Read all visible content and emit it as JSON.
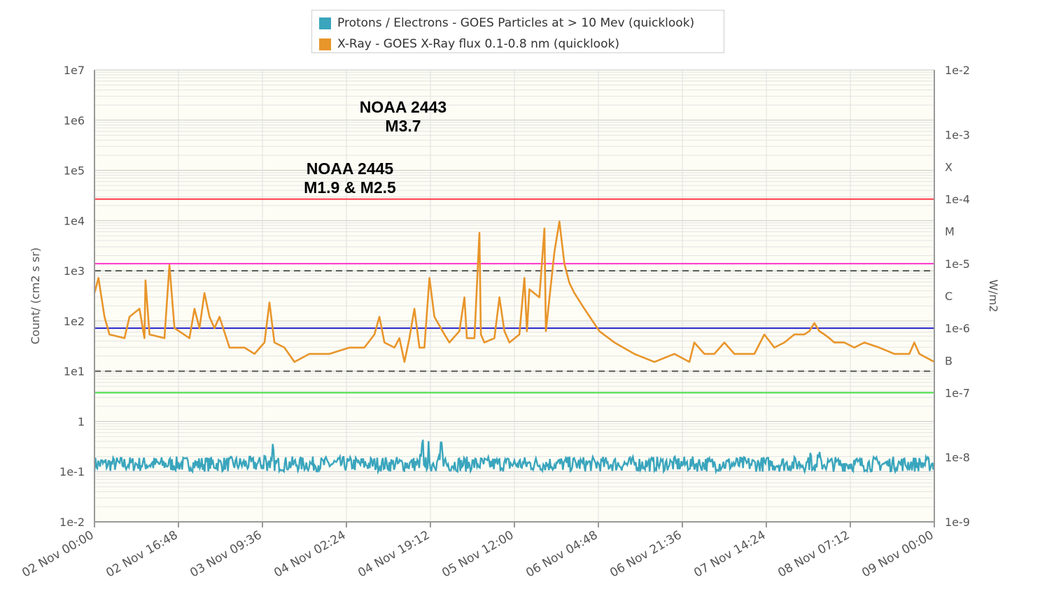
{
  "chart_data": {
    "type": "line",
    "xlabels": [
      "02 Nov 00:00",
      "02 Nov 16:48",
      "03 Nov 09:36",
      "04 Nov 02:24",
      "04 Nov 19:12",
      "05 Nov 12:00",
      "06 Nov 04:48",
      "06 Nov 21:36",
      "07 Nov 14:24",
      "08 Nov 07:12",
      "09 Nov 00:00"
    ],
    "x_range_hours": [
      0,
      168
    ],
    "left_axis": {
      "label": "Count/ (cm2 s sr)",
      "scale": "log",
      "ticks": [
        "1e7",
        "1e6",
        "1e5",
        "1e4",
        "1e3",
        "1e2",
        "1e1",
        "1",
        "1e-1",
        "1e-2"
      ],
      "ylim_exp": [
        -2,
        7
      ]
    },
    "right_axis": {
      "label": "W/m2",
      "scale": "log",
      "ticks": [
        "1e-2",
        "1e-3",
        "1e-4",
        "1e-5",
        "1e-6",
        "1e-7",
        "1e-8",
        "1e-9"
      ],
      "ylim_exp": [
        -9,
        -2
      ],
      "classes": [
        "X",
        "M",
        "C",
        "B"
      ]
    },
    "threshold_lines": [
      {
        "axis": "right",
        "value": 0.0001,
        "color": "#ff3344",
        "style": "solid"
      },
      {
        "axis": "right",
        "value": 1e-05,
        "color": "#ff33cc",
        "style": "solid"
      },
      {
        "axis": "left",
        "value": 1000,
        "color": "#555555",
        "style": "dashed"
      },
      {
        "axis": "right",
        "value": 1e-06,
        "color": "#2222cc",
        "style": "solid"
      },
      {
        "axis": "left",
        "value": 10,
        "color": "#555555",
        "style": "dashed"
      },
      {
        "axis": "right",
        "value": 1e-07,
        "color": "#44dd44",
        "style": "solid"
      }
    ],
    "series": [
      {
        "name": "Protons / Electrons - GOES Particles at > 10 Mev (quicklook)",
        "color": "#3aa5bd",
        "axis": "left",
        "baseline_low": 0.1,
        "baseline_high": 0.2,
        "peaks": [
          [
            35,
            0.4
          ],
          [
            66,
            0.5
          ],
          [
            69,
            0.4
          ],
          [
            144,
            0.35
          ]
        ]
      },
      {
        "name": "X-Ray - GOES X-Ray flux 0.1-0.8 nm (quicklook)",
        "color": "#e8952a",
        "axis": "right",
        "points": [
          [
            0,
            3.5e-06
          ],
          [
            0.8,
            6e-06
          ],
          [
            2,
            1.5e-06
          ],
          [
            3,
            8e-07
          ],
          [
            6,
            7e-07
          ],
          [
            7,
            1.5e-06
          ],
          [
            9,
            2e-06
          ],
          [
            10,
            7e-07
          ],
          [
            10.2,
            5.5e-06
          ],
          [
            11,
            8e-07
          ],
          [
            14,
            7e-07
          ],
          [
            15,
            9.5e-06
          ],
          [
            16,
            1e-06
          ],
          [
            19,
            7e-07
          ],
          [
            20,
            2e-06
          ],
          [
            21,
            1e-06
          ],
          [
            22,
            3.5e-06
          ],
          [
            23,
            1.5e-06
          ],
          [
            24,
            1e-06
          ],
          [
            25,
            1.5e-06
          ],
          [
            27,
            5e-07
          ],
          [
            30,
            5e-07
          ],
          [
            32,
            4e-07
          ],
          [
            34,
            6e-07
          ],
          [
            35,
            2.5e-06
          ],
          [
            36,
            6e-07
          ],
          [
            38,
            5e-07
          ],
          [
            40,
            3e-07
          ],
          [
            43,
            4e-07
          ],
          [
            47,
            4e-07
          ],
          [
            51,
            5e-07
          ],
          [
            54,
            5e-07
          ],
          [
            56,
            8e-07
          ],
          [
            57,
            1.5e-06
          ],
          [
            58,
            6e-07
          ],
          [
            60,
            5e-07
          ],
          [
            61,
            7e-07
          ],
          [
            62,
            3e-07
          ],
          [
            63,
            7e-07
          ],
          [
            64,
            2e-06
          ],
          [
            65,
            5e-07
          ],
          [
            66,
            5e-07
          ],
          [
            67,
            6e-06
          ],
          [
            68,
            1.5e-06
          ],
          [
            70,
            8e-07
          ],
          [
            71,
            6e-07
          ],
          [
            73,
            9e-07
          ],
          [
            74,
            3e-06
          ],
          [
            74.5,
            7e-07
          ],
          [
            76,
            7e-07
          ],
          [
            77,
            3e-05
          ],
          [
            77.3,
            8e-07
          ],
          [
            78,
            6e-07
          ],
          [
            80,
            7e-07
          ],
          [
            81,
            3e-06
          ],
          [
            82,
            9e-07
          ],
          [
            83,
            6e-07
          ],
          [
            85,
            8e-07
          ],
          [
            86,
            6e-06
          ],
          [
            86.5,
            9e-07
          ],
          [
            87,
            4e-06
          ],
          [
            89,
            3e-06
          ],
          [
            90,
            3.5e-05
          ],
          [
            90.3,
            9e-07
          ],
          [
            92,
            1.5e-05
          ],
          [
            93,
            4.5e-05
          ],
          [
            94,
            1e-05
          ],
          [
            95,
            5e-06
          ],
          [
            96,
            3.5e-06
          ],
          [
            98,
            2e-06
          ],
          [
            101,
            9e-07
          ],
          [
            104,
            6e-07
          ],
          [
            108,
            4e-07
          ],
          [
            112,
            3e-07
          ],
          [
            116,
            4e-07
          ],
          [
            119,
            3e-07
          ],
          [
            120,
            6e-07
          ],
          [
            122,
            4e-07
          ],
          [
            124,
            4e-07
          ],
          [
            126,
            6e-07
          ],
          [
            128,
            4e-07
          ],
          [
            132,
            4e-07
          ],
          [
            134,
            8e-07
          ],
          [
            136,
            5e-07
          ],
          [
            138,
            6e-07
          ],
          [
            140,
            8e-07
          ],
          [
            142,
            8e-07
          ],
          [
            143,
            9e-07
          ],
          [
            144,
            1.2e-06
          ],
          [
            145,
            9e-07
          ],
          [
            146,
            8e-07
          ],
          [
            147,
            7e-07
          ],
          [
            148,
            6e-07
          ],
          [
            150,
            6e-07
          ],
          [
            152,
            5e-07
          ],
          [
            154,
            6e-07
          ],
          [
            157,
            5e-07
          ],
          [
            160,
            4e-07
          ],
          [
            163,
            4e-07
          ],
          [
            164,
            6e-07
          ],
          [
            165,
            4e-07
          ],
          [
            168,
            3e-07
          ]
        ]
      }
    ],
    "annotations": [
      {
        "lines": [
          "NOAA 2443",
          "M3.7"
        ]
      },
      {
        "lines": [
          "NOAA 2445",
          "M1.9 & M2.5"
        ]
      }
    ]
  }
}
